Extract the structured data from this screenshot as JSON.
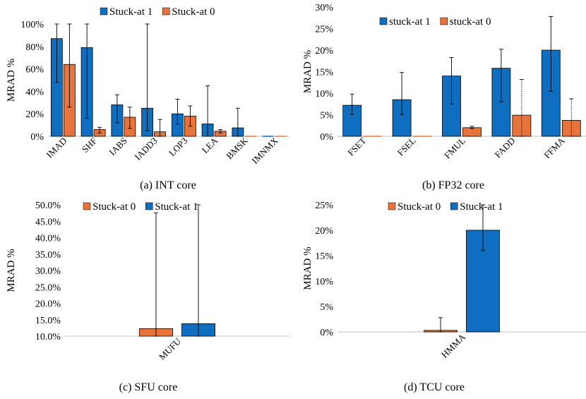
{
  "colors": {
    "blue": "#0f6ebf",
    "orange": "#e8743b",
    "axis": "#bfbfbf"
  },
  "chart_data": [
    {
      "type": "bar",
      "caption": "(a) INT core",
      "ylabel": "MRAD %",
      "ylim": [
        0,
        100
      ],
      "yticks": [
        "0%",
        "20%",
        "40%",
        "60%",
        "80%",
        "100%"
      ],
      "tick_values": [
        0,
        20,
        40,
        60,
        80,
        100
      ],
      "categories": [
        "IMAD",
        "SHF",
        "IABS",
        "IADD3",
        "LOP3",
        "LEA",
        "BMSK",
        "IMNMX"
      ],
      "legend": "top-center",
      "series": [
        {
          "name": "Stuck-at 1",
          "color": "#0f6ebf",
          "values": [
            87,
            79,
            28,
            25,
            20,
            11,
            7.5,
            0
          ],
          "err_low": [
            48,
            16,
            12,
            5,
            11,
            0,
            0,
            0
          ],
          "err_high": [
            100,
            100,
            37,
            100,
            33,
            45,
            25,
            0
          ]
        },
        {
          "name": "Stuck-at 0",
          "color": "#e8743b",
          "values": [
            64,
            6,
            17,
            4,
            18,
            4.5,
            0,
            0
          ],
          "err_low": [
            26,
            3,
            7,
            0,
            9,
            3,
            0,
            0
          ],
          "err_high": [
            100,
            8,
            26,
            15,
            27,
            6,
            0,
            0
          ]
        }
      ]
    },
    {
      "type": "bar",
      "caption": "(b) FP32 core",
      "ylabel": "MRAD %",
      "ylim": [
        0,
        30
      ],
      "yticks": [
        "0%",
        "5%",
        "10%",
        "15%",
        "20%",
        "25%",
        "30%"
      ],
      "tick_values": [
        0,
        5,
        10,
        15,
        20,
        25,
        30
      ],
      "categories": [
        "FSET",
        "FSEL",
        "FMUL",
        "FADD",
        "FFMA"
      ],
      "legend": "top-center",
      "series": [
        {
          "name": "stuck-at 1",
          "color": "#0f6ebf",
          "values": [
            7.2,
            8.5,
            14,
            15.8,
            20
          ],
          "err_low": [
            5,
            5,
            7.5,
            8,
            10.5
          ],
          "err_high": [
            9.8,
            14.8,
            18.3,
            20.2,
            27.8
          ]
        },
        {
          "name": "stuck-at 0",
          "color": "#e8743b",
          "values": [
            0,
            0,
            2,
            4.9,
            3.7
          ],
          "err_low": [
            0,
            0,
            1.8,
            0,
            0
          ],
          "err_high": [
            0,
            0,
            2.3,
            13.2,
            8.7
          ]
        }
      ]
    },
    {
      "type": "bar",
      "caption": "(c) SFU core",
      "ylabel": "MRAD %",
      "ylim": [
        10,
        50
      ],
      "yticks": [
        "10.0%",
        "15.0%",
        "20.0%",
        "25.0%",
        "30.0%",
        "35.0%",
        "40.0%",
        "45.0%",
        "50.0%"
      ],
      "tick_values": [
        10,
        15,
        20,
        25,
        30,
        35,
        40,
        45,
        50
      ],
      "categories": [
        "MUFU"
      ],
      "legend": "top-center",
      "series": [
        {
          "name": "Stuck-at 0",
          "color": "#e8743b",
          "values": [
            12.3
          ],
          "err_low": [
            10
          ],
          "err_high": [
            47.5
          ]
        },
        {
          "name": "Stuck-at 1",
          "color": "#0f6ebf",
          "values": [
            13.8
          ],
          "err_low": [
            10
          ],
          "err_high": [
            50
          ]
        }
      ]
    },
    {
      "type": "bar",
      "caption": "(d) TCU core",
      "ylabel": "MRAD %",
      "ylim": [
        0,
        25
      ],
      "yticks": [
        "0%",
        "5%",
        "10%",
        "15%",
        "20%",
        "25%"
      ],
      "tick_values": [
        0,
        5,
        10,
        15,
        20,
        25
      ],
      "categories": [
        "HMMA"
      ],
      "legend": "top-center",
      "series": [
        {
          "name": "Stuck-at 0",
          "color": "#e8743b",
          "values": [
            0.3
          ],
          "err_low": [
            0
          ],
          "err_high": [
            2.8
          ]
        },
        {
          "name": "Stuck-at 1",
          "color": "#0f6ebf",
          "values": [
            20
          ],
          "err_low": [
            16
          ],
          "err_high": [
            25
          ]
        }
      ]
    }
  ]
}
